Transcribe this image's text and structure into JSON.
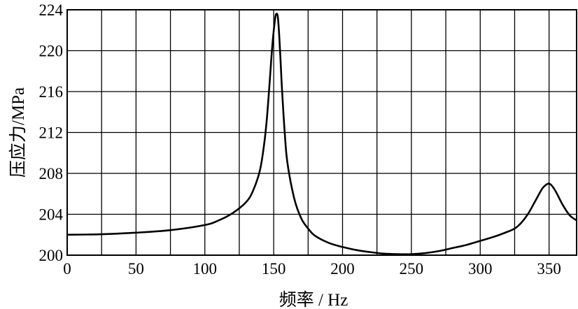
{
  "chart_data": {
    "type": "line",
    "title": "",
    "xlabel": "频率 / Hz",
    "ylabel": "压应力/MPa",
    "xlim": [
      0,
      370
    ],
    "ylim": [
      200,
      224
    ],
    "x_tick_labels": [
      "0",
      "50",
      "100",
      "150",
      "200",
      "250",
      "300",
      "350"
    ],
    "y_tick_labels": [
      "200",
      "204",
      "208",
      "212",
      "216",
      "220",
      "224"
    ],
    "x_ticks": [
      0,
      50,
      100,
      150,
      200,
      250,
      300,
      350
    ],
    "y_ticks": [
      200,
      204,
      208,
      212,
      216,
      220,
      224
    ],
    "grid_x": [
      0,
      25,
      50,
      75,
      100,
      125,
      150,
      175,
      200,
      225,
      250,
      275,
      300,
      325,
      350,
      370
    ],
    "grid_y": [
      200,
      204,
      208,
      212,
      216,
      220,
      224
    ],
    "grid": true,
    "line_color": "#000000",
    "series": [
      {
        "x": [
          0,
          25,
          50,
          75,
          100,
          110,
          120,
          130,
          135,
          140,
          143,
          145,
          147,
          149,
          151,
          152,
          153,
          154,
          155,
          156,
          158,
          160,
          165,
          170,
          175,
          180,
          190,
          200,
          210,
          220,
          230,
          240,
          250,
          260,
          270,
          280,
          290,
          300,
          310,
          320,
          325,
          330,
          335,
          340,
          345,
          348,
          350,
          352,
          355,
          360,
          365,
          370
        ],
        "y": [
          202.0,
          202.05,
          202.2,
          202.45,
          202.95,
          203.4,
          204.1,
          205.2,
          206.3,
          208.3,
          210.8,
          213.3,
          216.8,
          220.5,
          223.1,
          223.6,
          223.3,
          221.5,
          219.0,
          216.3,
          212.0,
          209.0,
          205.5,
          203.6,
          202.6,
          201.9,
          201.2,
          200.8,
          200.5,
          200.3,
          200.15,
          200.1,
          200.1,
          200.2,
          200.4,
          200.7,
          201.0,
          201.4,
          201.8,
          202.3,
          202.6,
          203.2,
          204.1,
          205.3,
          206.5,
          206.9,
          207.0,
          206.8,
          206.2,
          204.9,
          203.9,
          203.4
        ]
      }
    ]
  }
}
